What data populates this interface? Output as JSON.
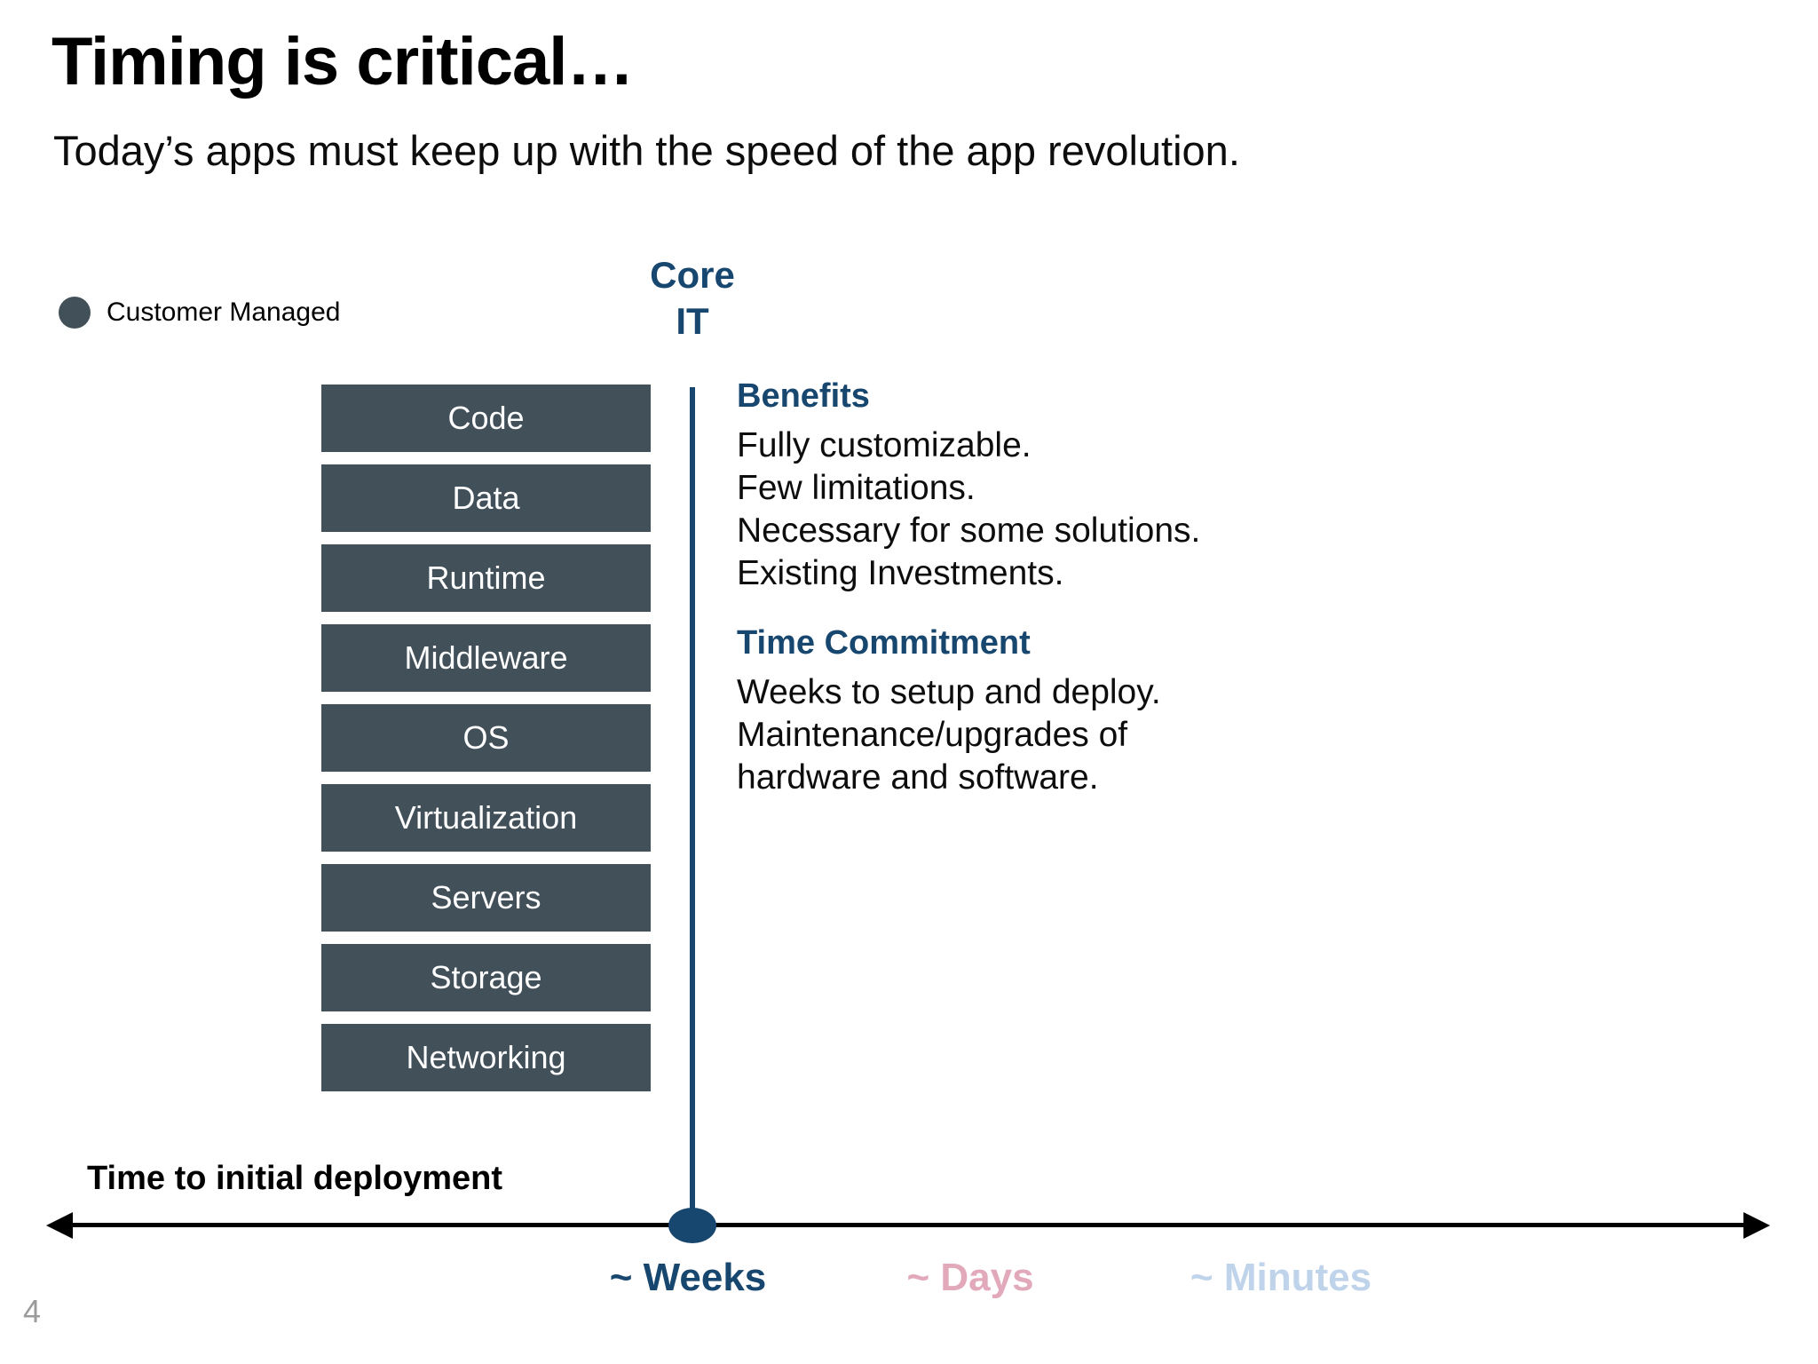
{
  "slide": {
    "title": "Timing is critical…",
    "subtitle": "Today’s apps must keep up with the speed of the app revolution.",
    "page_number": "4"
  },
  "legend": {
    "customer_managed_label": "Customer Managed"
  },
  "core_it": {
    "line1": "Core",
    "line2": "IT"
  },
  "stack": {
    "layers": [
      "Code",
      "Data",
      "Runtime",
      "Middleware",
      "OS",
      "Virtualization",
      "Servers",
      "Storage",
      "Networking"
    ]
  },
  "benefits": {
    "heading": "Benefits",
    "lines": [
      "Fully customizable.",
      "Few limitations.",
      "Necessary for some solutions.",
      "Existing Investments."
    ]
  },
  "time_commitment": {
    "heading": "Time Commitment",
    "lines": [
      "Weeks to setup and deploy.",
      "Maintenance/upgrades of",
      "hardware and software."
    ]
  },
  "timeline": {
    "axis_label": "Time to initial deployment",
    "ticks": [
      {
        "label": "~ Weeks",
        "color": "#17466F"
      },
      {
        "label": "~ Days",
        "color": "#E2A9BB"
      },
      {
        "label": "~ Minutes",
        "color": "#BFD3EA"
      }
    ]
  },
  "colors": {
    "accent_navy": "#17466F",
    "layer_slate": "#42505A",
    "tick_days_pink": "#E2A9BB",
    "tick_minutes_blue": "#BFD3EA",
    "page_number_gray": "#9B9B9B"
  }
}
